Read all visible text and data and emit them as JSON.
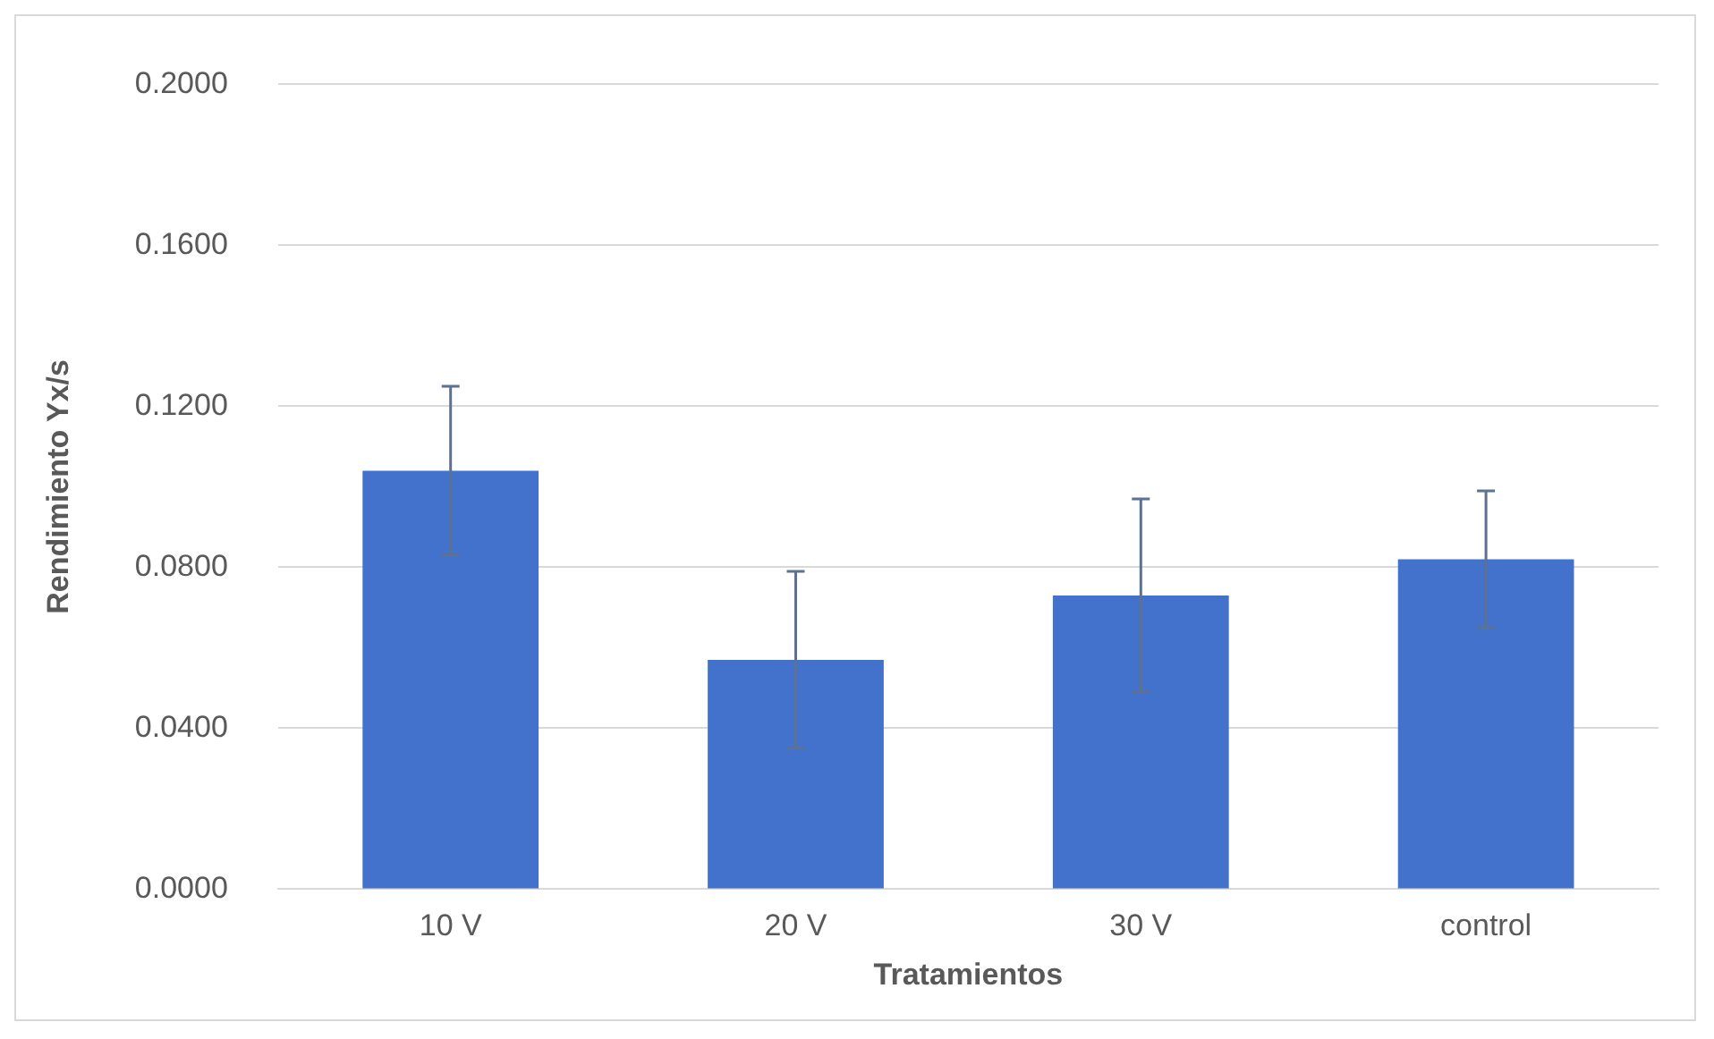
{
  "chart_data": {
    "type": "bar",
    "xlabel": "Tratamientos",
    "ylabel": "Rendimiento Yx/s",
    "categories": [
      "10 V",
      "20 V",
      "30 V",
      "control"
    ],
    "values": [
      0.104,
      0.057,
      0.073,
      0.082
    ],
    "errors": [
      0.021,
      0.022,
      0.024,
      0.017
    ],
    "color": "#4272cc",
    "ylim": [
      0,
      0.2
    ],
    "yticks": [
      {
        "value": 0,
        "label": "0.0000"
      },
      {
        "value": 0.04,
        "label": "0.0400"
      },
      {
        "value": 0.08,
        "label": "0.0800"
      },
      {
        "value": 0.12,
        "label": "0.1200"
      },
      {
        "value": 0.16,
        "label": "0.1600"
      },
      {
        "value": 0.2,
        "label": "0.2000"
      }
    ],
    "grid": "y",
    "legend": false
  }
}
